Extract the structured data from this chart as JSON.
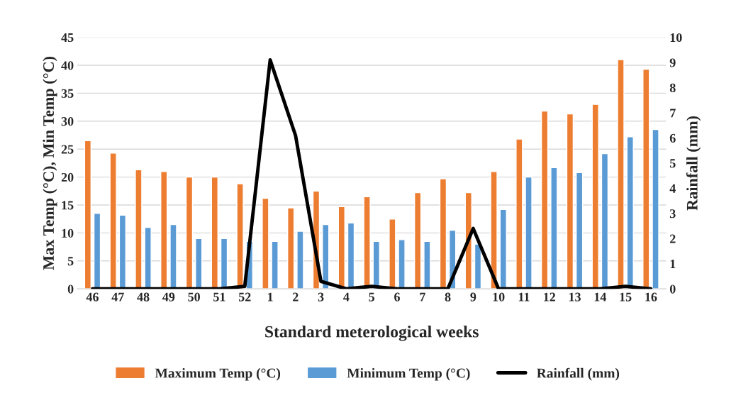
{
  "chart_data": {
    "type": "bar",
    "xlabel": "Standard meterological weeks",
    "ylabel": "Max Temp (°C), Min Temp (°C)",
    "y2label": "Rainfall (mm)",
    "categories": [
      "46",
      "47",
      "48",
      "49",
      "50",
      "51",
      "52",
      "1",
      "2",
      "3",
      "4",
      "5",
      "6",
      "7",
      "8",
      "9",
      "10",
      "11",
      "12",
      "13",
      "14",
      "15",
      "16"
    ],
    "series": [
      {
        "name": "Maximum Temp (°C)",
        "color": "#ed7d31",
        "values": [
          26.5,
          24.3,
          21.3,
          21,
          20,
          20,
          18.8,
          16.2,
          14.5,
          17.5,
          14.7,
          16.5,
          12.5,
          17.2,
          19.7,
          17.2,
          21,
          26.8,
          31.8,
          31.3,
          33,
          41,
          39.3
        ]
      },
      {
        "name": "Minimum Temp (°C)",
        "color": "#5b9bd5",
        "values": [
          13.5,
          13.2,
          11,
          11.5,
          9,
          9,
          8.5,
          8.5,
          10.3,
          11.5,
          11.8,
          8.5,
          8.8,
          8.5,
          10.5,
          8,
          14.2,
          20,
          21.7,
          20.8,
          24.2,
          27.2,
          28.5
        ]
      },
      {
        "name": "Rainfall (mm)",
        "type": "line",
        "axis": "y2",
        "color": "#000000",
        "values": [
          0,
          0,
          0,
          0,
          0,
          0,
          0.1,
          9.1,
          6.1,
          0.3,
          0,
          0.1,
          0,
          0,
          0,
          2.4,
          0,
          0,
          0,
          0,
          0,
          0.1,
          0
        ]
      }
    ],
    "ylim": [
      0,
      45
    ],
    "yticks": [
      0,
      5,
      10,
      15,
      20,
      25,
      30,
      35,
      40,
      45
    ],
    "y2lim": [
      0,
      10
    ],
    "y2ticks": [
      0,
      1,
      2,
      3,
      4,
      5,
      6,
      7,
      8,
      9,
      10
    ],
    "grid": "y",
    "legend": "bottom",
    "marker": "none",
    "line_style": "solid"
  }
}
